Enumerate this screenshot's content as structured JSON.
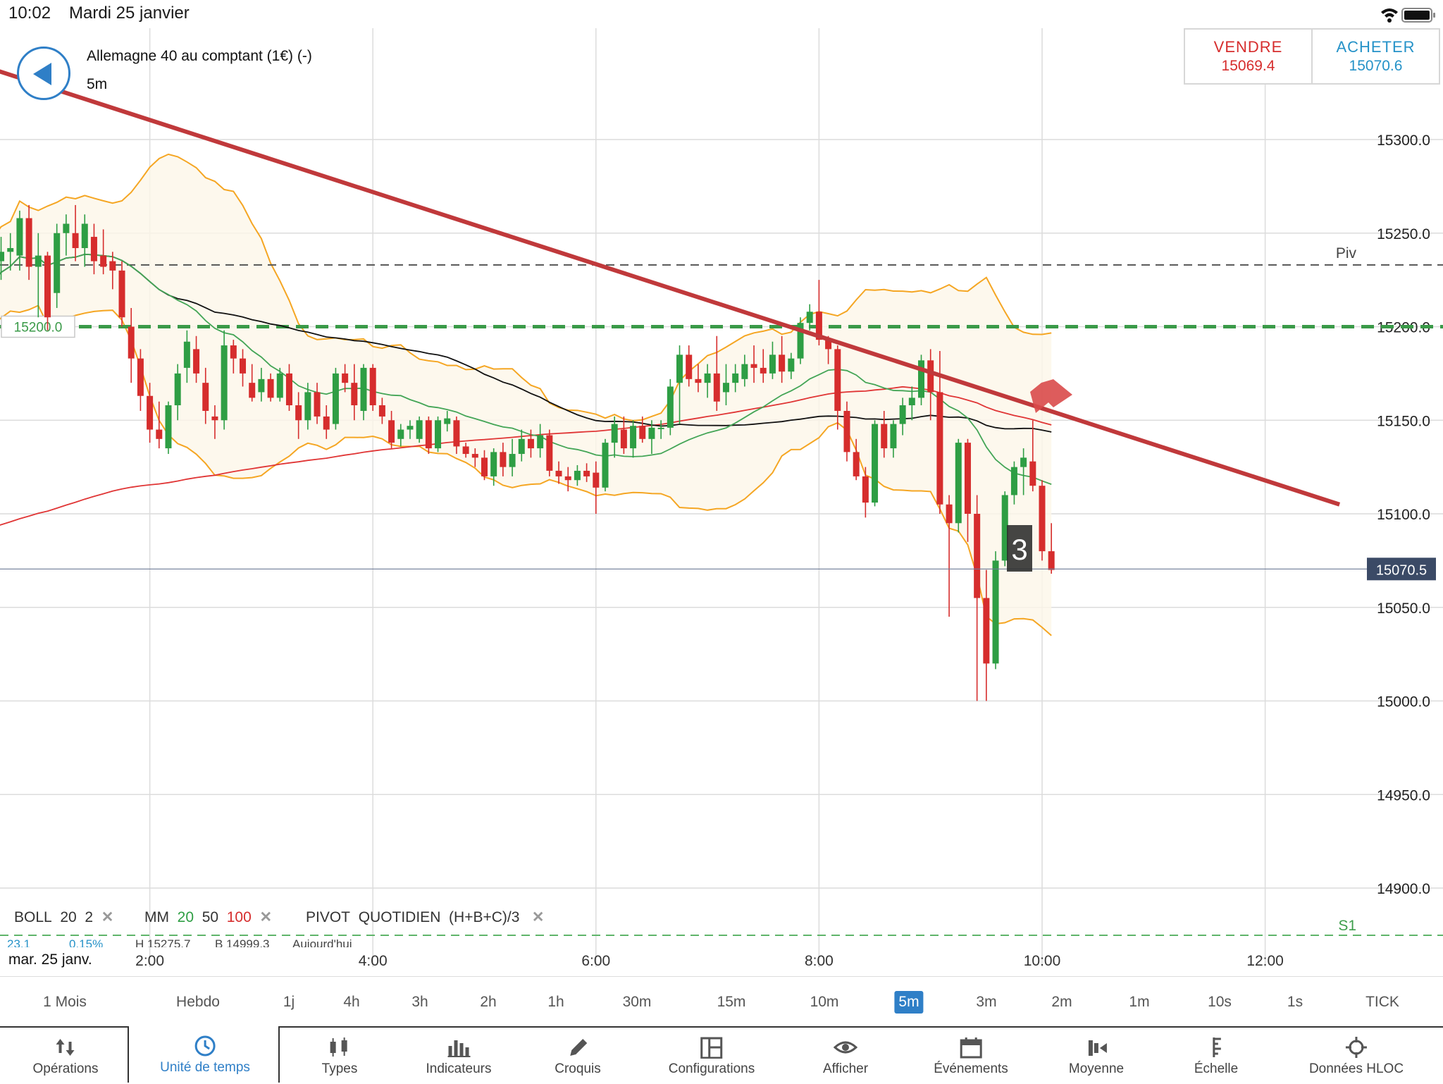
{
  "status": {
    "time": "10:02",
    "date": "Mardi 25 janvier"
  },
  "instrument": {
    "name": "Allemagne 40 au comptant (1€) (-)",
    "timeframe": "5m"
  },
  "trade": {
    "sell_label": "VENDRE",
    "sell_price": "15069.4",
    "buy_label": "ACHETER",
    "buy_price": "15070.6"
  },
  "colors": {
    "up": "#2e9e44",
    "down": "#d62d2d",
    "accent": "#2f7fc7",
    "boll": "#f5a623",
    "trendline": "#c0393b"
  },
  "indicators": {
    "boll": {
      "name": "BOLL",
      "p1": "20",
      "p2": "2"
    },
    "mm": {
      "name": "MM",
      "p1": "20",
      "p2": "50",
      "p3": "100"
    },
    "pivot": {
      "name": "PIVOT",
      "period": "QUOTIDIEN",
      "formula": "(H+B+C)/3"
    },
    "close_symbol": "✕"
  },
  "info": {
    "change": "23.1",
    "pct": "0.15%",
    "high": "H 15275.7",
    "low": "B 14999.3",
    "day": "Aujourd'hui"
  },
  "date_label": "mar. 25 janv.",
  "chart_data": {
    "type": "candlestick",
    "x_ticks": [
      "2:00",
      "4:00",
      "6:00",
      "8:00",
      "10:00",
      "12:00"
    ],
    "y_ticks": [
      "15300.0",
      "15250.0",
      "15200.0",
      "15150.0",
      "15100.0",
      "15050.0",
      "15000.0",
      "14950.0",
      "14900.0"
    ],
    "ylim": [
      14876,
      15355
    ],
    "current_price": "15070.5",
    "levels": {
      "pivot_label": "Piv",
      "pivot": 15233,
      "s1_label": "S1",
      "s1": 14873,
      "order_label": "15200.0",
      "order": 15200
    },
    "marker_label": "3",
    "trendline": {
      "start": [
        "0:28",
        15340
      ],
      "end": [
        "12:40",
        15105
      ]
    },
    "candles": [
      [
        "0:30",
        15213,
        15225,
        15200,
        15212
      ],
      [
        "0:35",
        15212,
        15240,
        15205,
        15235
      ],
      [
        "0:40",
        15235,
        15248,
        15225,
        15240
      ],
      [
        "0:45",
        15240,
        15250,
        15230,
        15242
      ],
      [
        "0:50",
        15238,
        15262,
        15230,
        15258
      ],
      [
        "0:55",
        15258,
        15265,
        15225,
        15232
      ],
      [
        "1:00",
        15232,
        15250,
        15205,
        15238
      ],
      [
        "1:05",
        15238,
        15240,
        15198,
        15205
      ],
      [
        "1:10",
        15218,
        15255,
        15210,
        15250
      ],
      [
        "1:15",
        15250,
        15260,
        15238,
        15255
      ],
      [
        "1:20",
        15250,
        15265,
        15235,
        15242
      ],
      [
        "1:25",
        15242,
        15260,
        15232,
        15255
      ],
      [
        "1:30",
        15248,
        15255,
        15228,
        15235
      ],
      [
        "1:35",
        15238,
        15252,
        15228,
        15232
      ],
      [
        "1:40",
        15235,
        15240,
        15220,
        15230
      ],
      [
        "1:45",
        15230,
        15235,
        15200,
        15205
      ],
      [
        "1:50",
        15200,
        15210,
        15170,
        15183
      ],
      [
        "1:55",
        15183,
        15188,
        15155,
        15163
      ],
      [
        "2:00",
        15163,
        15170,
        15138,
        15145
      ],
      [
        "2:05",
        15145,
        15160,
        15135,
        15140
      ],
      [
        "2:10",
        15135,
        15160,
        15132,
        15158
      ],
      [
        "2:15",
        15158,
        15180,
        15150,
        15175
      ],
      [
        "2:20",
        15178,
        15198,
        15170,
        15192
      ],
      [
        "2:25",
        15188,
        15195,
        15170,
        15175
      ],
      [
        "2:30",
        15170,
        15178,
        15148,
        15155
      ],
      [
        "2:35",
        15152,
        15158,
        15140,
        15150
      ],
      [
        "2:40",
        15150,
        15198,
        15145,
        15190
      ],
      [
        "2:45",
        15190,
        15193,
        15175,
        15183
      ],
      [
        "2:50",
        15183,
        15188,
        15168,
        15175
      ],
      [
        "2:55",
        15170,
        15180,
        15160,
        15162
      ],
      [
        "3:00",
        15165,
        15178,
        15160,
        15172
      ],
      [
        "3:05",
        15172,
        15175,
        15160,
        15162
      ],
      [
        "3:10",
        15162,
        15178,
        15160,
        15175
      ],
      [
        "3:15",
        15175,
        15180,
        15155,
        15158
      ],
      [
        "3:20",
        15158,
        15165,
        15140,
        15150
      ],
      [
        "3:25",
        15150,
        15170,
        15145,
        15165
      ],
      [
        "3:30",
        15165,
        15170,
        15148,
        15152
      ],
      [
        "3:35",
        15152,
        15158,
        15140,
        15145
      ],
      [
        "3:40",
        15148,
        15178,
        15145,
        15175
      ],
      [
        "3:45",
        15175,
        15180,
        15165,
        15170
      ],
      [
        "3:50",
        15170,
        15180,
        15150,
        15158
      ],
      [
        "3:55",
        15155,
        15180,
        15150,
        15178
      ],
      [
        "4:00",
        15178,
        15180,
        15155,
        15158
      ],
      [
        "4:05",
        15158,
        15162,
        15148,
        15152
      ],
      [
        "4:10",
        15150,
        15155,
        15135,
        15138
      ],
      [
        "4:15",
        15140,
        15148,
        15136,
        15145
      ],
      [
        "4:20",
        15145,
        15150,
        15140,
        15147
      ],
      [
        "4:25",
        15140,
        15152,
        15138,
        15150
      ],
      [
        "4:30",
        15150,
        15152,
        15132,
        15135
      ],
      [
        "4:35",
        15135,
        15152,
        15133,
        15150
      ],
      [
        "4:40",
        15148,
        15155,
        15144,
        15151
      ],
      [
        "4:45",
        15150,
        15152,
        15132,
        15136
      ],
      [
        "4:50",
        15136,
        15138,
        15130,
        15132
      ],
      [
        "4:55",
        15132,
        15135,
        15125,
        15130
      ],
      [
        "5:00",
        15130,
        15134,
        15118,
        15120
      ],
      [
        "5:05",
        15120,
        15135,
        15115,
        15133
      ],
      [
        "5:10",
        15133,
        15138,
        15120,
        15125
      ],
      [
        "5:15",
        15125,
        15140,
        15120,
        15132
      ],
      [
        "5:20",
        15132,
        15145,
        15128,
        15140
      ],
      [
        "5:25",
        15140,
        15145,
        15130,
        15135
      ],
      [
        "5:30",
        15135,
        15148,
        15130,
        15142
      ],
      [
        "5:35",
        15142,
        15145,
        15120,
        15123
      ],
      [
        "5:40",
        15123,
        15128,
        15116,
        15120
      ],
      [
        "5:45",
        15120,
        15125,
        15112,
        15118
      ],
      [
        "5:50",
        15118,
        15126,
        15115,
        15123
      ],
      [
        "5:55",
        15123,
        15127,
        15117,
        15120
      ],
      [
        "6:00",
        15122,
        15128,
        15100,
        15114
      ],
      [
        "6:05",
        15114,
        15140,
        15112,
        15138
      ],
      [
        "6:10",
        15138,
        15152,
        15130,
        15148
      ],
      [
        "6:15",
        15145,
        15152,
        15132,
        15135
      ],
      [
        "6:20",
        15135,
        15150,
        15130,
        15147
      ],
      [
        "6:25",
        15147,
        15152,
        15138,
        15140
      ],
      [
        "6:30",
        15140,
        15150,
        15132,
        15146
      ],
      [
        "6:35",
        15146,
        15150,
        15140,
        15146
      ],
      [
        "6:40",
        15146,
        15172,
        15142,
        15168
      ],
      [
        "6:45",
        15170,
        15190,
        15148,
        15185
      ],
      [
        "6:50",
        15185,
        15190,
        15168,
        15172
      ],
      [
        "6:55",
        15172,
        15180,
        15165,
        15170
      ],
      [
        "7:00",
        15170,
        15180,
        15162,
        15175
      ],
      [
        "7:05",
        15175,
        15195,
        15155,
        15160
      ],
      [
        "7:10",
        15165,
        15180,
        15158,
        15170
      ],
      [
        "7:15",
        15170,
        15180,
        15165,
        15175
      ],
      [
        "7:20",
        15172,
        15185,
        15168,
        15180
      ],
      [
        "7:25",
        15180,
        15190,
        15170,
        15178
      ],
      [
        "7:30",
        15178,
        15188,
        15170,
        15175
      ],
      [
        "7:35",
        15175,
        15192,
        15172,
        15185
      ],
      [
        "7:40",
        15185,
        15195,
        15170,
        15176
      ],
      [
        "7:45",
        15176,
        15186,
        15172,
        15183
      ],
      [
        "7:50",
        15183,
        15205,
        15180,
        15202
      ],
      [
        "7:55",
        15202,
        15212,
        15198,
        15208
      ],
      [
        "8:00",
        15208,
        15225,
        15190,
        15193
      ],
      [
        "8:05",
        15193,
        15195,
        15180,
        15188
      ],
      [
        "8:10",
        15188,
        15190,
        15145,
        15155
      ],
      [
        "8:15",
        15155,
        15160,
        15128,
        15133
      ],
      [
        "8:20",
        15133,
        15140,
        15118,
        15120
      ],
      [
        "8:25",
        15120,
        15125,
        15098,
        15106
      ],
      [
        "8:30",
        15106,
        15150,
        15104,
        15148
      ],
      [
        "8:35",
        15148,
        15155,
        15130,
        15135
      ],
      [
        "8:40",
        15135,
        15150,
        15130,
        15148
      ],
      [
        "8:45",
        15148,
        15162,
        15142,
        15158
      ],
      [
        "8:50",
        15158,
        15168,
        15150,
        15162
      ],
      [
        "8:55",
        15162,
        15185,
        15158,
        15182
      ],
      [
        "9:00",
        15182,
        15188,
        15150,
        15165
      ],
      [
        "9:05",
        15165,
        15187,
        15100,
        15105
      ],
      [
        "9:10",
        15105,
        15110,
        15045,
        15095
      ],
      [
        "9:15",
        15095,
        15140,
        15090,
        15138
      ],
      [
        "9:20",
        15138,
        15140,
        15085,
        15100
      ],
      [
        "9:25",
        15100,
        15110,
        15000,
        15055
      ],
      [
        "9:30",
        15055,
        15070,
        15000,
        15020
      ],
      [
        "9:35",
        15020,
        15080,
        15017,
        15075
      ],
      [
        "9:40",
        15075,
        15112,
        15072,
        15110
      ],
      [
        "9:45",
        15110,
        15128,
        15105,
        15125
      ],
      [
        "9:50",
        15125,
        15135,
        15110,
        15130
      ],
      [
        "9:55",
        15128,
        15150,
        15112,
        15115
      ],
      [
        "10:00",
        15115,
        15118,
        15075,
        15080
      ],
      [
        "10:05",
        15080,
        15095,
        15068,
        15070
      ]
    ]
  },
  "timeframes": [
    "1 Mois",
    "Hebdo",
    "1j",
    "4h",
    "3h",
    "2h",
    "1h",
    "30m",
    "15m",
    "10m",
    "5m",
    "3m",
    "2m",
    "1m",
    "10s",
    "1s",
    "TICK"
  ],
  "active_timeframe": "5m",
  "toolbar": [
    {
      "label": "Opérations",
      "icon": "sort-arrows-icon"
    },
    {
      "label": "Unité de temps",
      "icon": "clock-icon"
    },
    {
      "label": "Types",
      "icon": "candles-icon"
    },
    {
      "label": "Indicateurs",
      "icon": "bar-chart-icon"
    },
    {
      "label": "Croquis",
      "icon": "pencil-icon"
    },
    {
      "label": "Configurations",
      "icon": "layout-icon"
    },
    {
      "label": "Afficher",
      "icon": "eye-icon"
    },
    {
      "label": "Événements",
      "icon": "calendar-icon"
    },
    {
      "label": "Moyenne",
      "icon": "volume-icon"
    },
    {
      "label": "Échelle",
      "icon": "scale-icon"
    },
    {
      "label": "Données HLOC",
      "icon": "crosshair-icon"
    }
  ]
}
